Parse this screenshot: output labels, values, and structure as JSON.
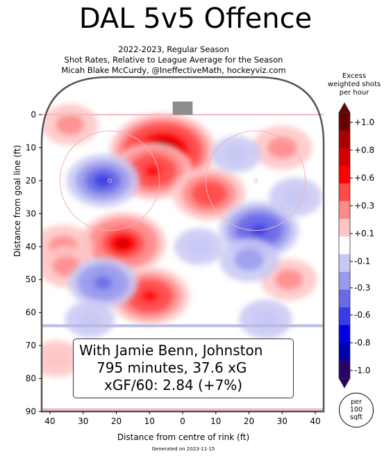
{
  "title": "DAL 5v5 Offence",
  "subtitle_lines": [
    "2022-2023, Regular Season",
    "Shot Rates, Relative to League Average for the Season",
    "Micah Blake McCurdy, @IneffectiveMath, hockeyviz.com"
  ],
  "colorbar": {
    "title_lines": [
      "Excess",
      "weighted shots",
      "per hour"
    ],
    "unit_lines": [
      "per",
      "100",
      "sqft"
    ],
    "tick_labels": [
      "+1.0",
      "+0.8",
      "+0.6",
      "+0.3",
      "+0.1",
      "-0.1",
      "-0.3",
      "-0.6",
      "-0.8",
      "-1.0"
    ],
    "colors": [
      "#6b0000",
      "#a80000",
      "#d40000",
      "#ff0000",
      "#ff4a4a",
      "#ff8a8a",
      "#ffc4c4",
      "#ffffff",
      "#c8c8f5",
      "#9a9aee",
      "#6a6ae8",
      "#3a3ae6",
      "#0000e0",
      "#0000a8",
      "#2a006b"
    ]
  },
  "info_box": {
    "line1": "With Jamie Benn, Johnston",
    "line2": "795 minutes, 37.6 xG",
    "line3": "xGF/60: 2.84 (+7%)"
  },
  "footer": "Generated on 2023-11-15",
  "chart_data": {
    "type": "heatmap",
    "title": "DAL 5v5 Offence",
    "xlabel": "Distance from centre of rink (ft)",
    "ylabel": "Distance from goal line (ft)",
    "x_ticks": [
      40,
      30,
      20,
      10,
      0,
      10,
      20,
      30,
      40
    ],
    "y_ticks": [
      0,
      10,
      20,
      30,
      40,
      50,
      60,
      70,
      80,
      90
    ],
    "xlim": [
      -42.5,
      42.5
    ],
    "ylim": [
      0,
      90
    ],
    "color_range": [
      -1.0,
      1.0
    ],
    "hotspots": [
      {
        "x": -6,
        "y": 11,
        "value": 1.0
      },
      {
        "x": -9,
        "y": 17,
        "value": 0.6
      },
      {
        "x": 8,
        "y": 24,
        "value": 0.5
      },
      {
        "x": -18,
        "y": 39,
        "value": 0.7
      },
      {
        "x": -10,
        "y": 55,
        "value": 0.6
      },
      {
        "x": -36,
        "y": 40,
        "value": 0.3
      },
      {
        "x": -35,
        "y": 46,
        "value": 0.25
      },
      {
        "x": -34,
        "y": 3,
        "value": 0.25
      },
      {
        "x": 30,
        "y": 10,
        "value": 0.3
      },
      {
        "x": 32,
        "y": 50,
        "value": 0.25
      },
      {
        "x": -38,
        "y": 74,
        "value": 0.15
      },
      {
        "x": -24,
        "y": 20,
        "value": -0.5
      },
      {
        "x": 23,
        "y": 35,
        "value": -0.6
      },
      {
        "x": -24,
        "y": 51,
        "value": -0.45
      },
      {
        "x": 20,
        "y": 44,
        "value": -0.3
      },
      {
        "x": 34,
        "y": 25,
        "value": -0.2
      },
      {
        "x": 16,
        "y": 12,
        "value": -0.15
      },
      {
        "x": 25,
        "y": 62,
        "value": -0.2
      },
      {
        "x": -28,
        "y": 62,
        "value": -0.15
      },
      {
        "x": 5,
        "y": 40,
        "value": -0.15
      }
    ]
  }
}
